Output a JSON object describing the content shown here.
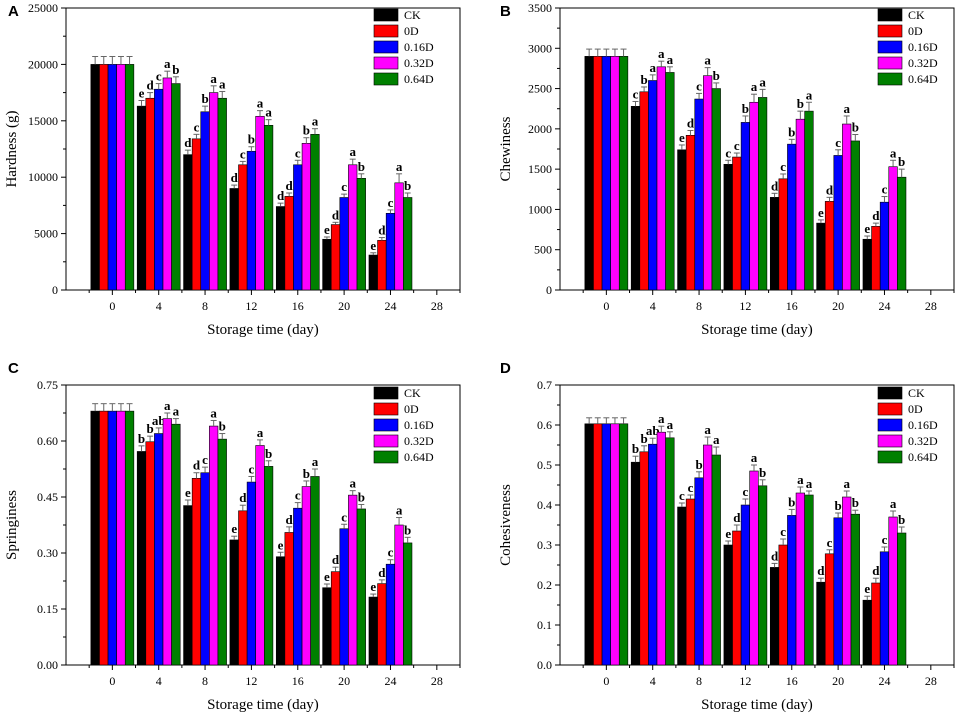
{
  "chart_data": [
    {
      "panel": "A",
      "type": "bar",
      "categories": [
        "0",
        "4",
        "8",
        "12",
        "16",
        "20",
        "24"
      ],
      "xticks": [
        "0",
        "4",
        "8",
        "12",
        "16",
        "20",
        "24",
        "28"
      ],
      "xlabel": "Storage time (day)",
      "ylabel": "Hardness (g)",
      "ylim": [
        0,
        25000
      ],
      "yticks": [
        "0",
        "5000",
        "10000",
        "15000",
        "20000",
        "25000"
      ],
      "legend_position": "top-right",
      "series": [
        {
          "name": "CK",
          "color": "#000000",
          "values": [
            20000,
            16300,
            12000,
            9000,
            7400,
            4500,
            3100
          ],
          "errors": [
            700,
            500,
            400,
            300,
            300,
            200,
            200
          ],
          "labels": [
            "",
            "e",
            "d",
            "d",
            "d",
            "e",
            "e"
          ]
        },
        {
          "name": "0D",
          "color": "#ff0000",
          "values": [
            20000,
            17000,
            13400,
            11100,
            8300,
            5800,
            4400
          ],
          "errors": [
            700,
            500,
            400,
            300,
            300,
            200,
            250
          ],
          "labels": [
            "",
            "d",
            "c",
            "c",
            "d",
            "d",
            "d"
          ]
        },
        {
          "name": "0.16D",
          "color": "#0000ff",
          "values": [
            20000,
            17800,
            15800,
            12300,
            11100,
            8200,
            6800
          ],
          "errors": [
            700,
            500,
            500,
            400,
            400,
            300,
            300
          ],
          "labels": [
            "",
            "c",
            "b",
            "b",
            "c",
            "c",
            "c"
          ]
        },
        {
          "name": "0.32D",
          "color": "#ff00ff",
          "values": [
            20000,
            18800,
            17500,
            15400,
            13000,
            11100,
            9500
          ],
          "errors": [
            700,
            600,
            600,
            500,
            500,
            500,
            800
          ],
          "labels": [
            "",
            "a",
            "a",
            "a",
            "b",
            "a",
            "a"
          ]
        },
        {
          "name": "0.64D",
          "color": "#008000",
          "values": [
            20000,
            18300,
            17000,
            14600,
            13800,
            9900,
            8200
          ],
          "errors": [
            700,
            600,
            600,
            500,
            500,
            400,
            400
          ],
          "labels": [
            "",
            "b",
            "a",
            "a",
            "a",
            "b",
            "b"
          ]
        }
      ]
    },
    {
      "panel": "B",
      "type": "bar",
      "categories": [
        "0",
        "4",
        "8",
        "12",
        "16",
        "20",
        "24"
      ],
      "xticks": [
        "0",
        "4",
        "8",
        "12",
        "16",
        "20",
        "24",
        "28"
      ],
      "xlabel": "Storage time (day)",
      "ylabel": "Chewiness",
      "ylim": [
        0,
        3500
      ],
      "yticks": [
        "0",
        "500",
        "1000",
        "1500",
        "2000",
        "2500",
        "3000",
        "3500"
      ],
      "legend_position": "top-right",
      "series": [
        {
          "name": "CK",
          "color": "#000000",
          "values": [
            2900,
            2280,
            1740,
            1560,
            1150,
            830,
            630
          ],
          "errors": [
            90,
            60,
            60,
            50,
            50,
            40,
            40
          ],
          "labels": [
            "",
            "c",
            "e",
            "c",
            "d",
            "e",
            "e"
          ]
        },
        {
          "name": "0D",
          "color": "#ff0000",
          "values": [
            2900,
            2460,
            1920,
            1650,
            1380,
            1100,
            790
          ],
          "errors": [
            90,
            60,
            60,
            50,
            60,
            50,
            40
          ],
          "labels": [
            "",
            "b",
            "d",
            "c",
            "c",
            "d",
            "d"
          ]
        },
        {
          "name": "0.16D",
          "color": "#0000ff",
          "values": [
            2900,
            2600,
            2370,
            2080,
            1810,
            1670,
            1090
          ],
          "errors": [
            90,
            70,
            70,
            80,
            60,
            70,
            70
          ],
          "labels": [
            "",
            "a",
            "c",
            "b",
            "b",
            "c",
            "c"
          ]
        },
        {
          "name": "0.32D",
          "color": "#ff00ff",
          "values": [
            2900,
            2770,
            2660,
            2330,
            2120,
            2060,
            1530
          ],
          "errors": [
            90,
            70,
            100,
            100,
            100,
            100,
            80
          ],
          "labels": [
            "",
            "a",
            "a",
            "a",
            "b",
            "a",
            "a"
          ]
        },
        {
          "name": "0.64D",
          "color": "#008000",
          "values": [
            2900,
            2700,
            2500,
            2390,
            2220,
            1850,
            1400
          ],
          "errors": [
            90,
            70,
            70,
            100,
            110,
            80,
            100
          ],
          "labels": [
            "",
            "a",
            "b",
            "a",
            "a",
            "b",
            "b"
          ]
        }
      ]
    },
    {
      "panel": "C",
      "type": "bar",
      "categories": [
        "0",
        "4",
        "8",
        "12",
        "16",
        "20",
        "24"
      ],
      "xticks": [
        "0",
        "4",
        "8",
        "12",
        "16",
        "20",
        "24",
        "28"
      ],
      "xlabel": "Storage time (day)",
      "ylabel": "Springiness",
      "ylim": [
        0,
        0.75
      ],
      "yticks": [
        "0.00",
        "0.15",
        "0.30",
        "0.45",
        "0.60",
        "0.75"
      ],
      "legend_position": "top-right",
      "series": [
        {
          "name": "CK",
          "color": "#000000",
          "values": [
            0.68,
            0.572,
            0.427,
            0.335,
            0.29,
            0.207,
            0.182
          ],
          "errors": [
            0.02,
            0.015,
            0.015,
            0.01,
            0.012,
            0.01,
            0.008
          ],
          "labels": [
            "",
            "b",
            "e",
            "e",
            "e",
            "e",
            "e"
          ]
        },
        {
          "name": "0D",
          "color": "#ff0000",
          "values": [
            0.68,
            0.598,
            0.5,
            0.413,
            0.355,
            0.25,
            0.218
          ],
          "errors": [
            0.02,
            0.015,
            0.015,
            0.015,
            0.015,
            0.012,
            0.01
          ],
          "labels": [
            "",
            "b",
            "d",
            "d",
            "d",
            "d",
            "d"
          ]
        },
        {
          "name": "0.16D",
          "color": "#0000ff",
          "values": [
            0.68,
            0.62,
            0.515,
            0.49,
            0.42,
            0.365,
            0.27
          ],
          "errors": [
            0.02,
            0.015,
            0.015,
            0.015,
            0.015,
            0.012,
            0.012
          ],
          "labels": [
            "",
            "ab",
            "c",
            "c",
            "c",
            "c",
            "c"
          ]
        },
        {
          "name": "0.32D",
          "color": "#ff00ff",
          "values": [
            0.68,
            0.66,
            0.64,
            0.588,
            0.478,
            0.455,
            0.375
          ],
          "errors": [
            0.02,
            0.015,
            0.015,
            0.015,
            0.015,
            0.012,
            0.02
          ],
          "labels": [
            "",
            "a",
            "a",
            "a",
            "b",
            "a",
            "a"
          ]
        },
        {
          "name": "0.64D",
          "color": "#008000",
          "values": [
            0.68,
            0.645,
            0.605,
            0.532,
            0.505,
            0.418,
            0.327
          ],
          "errors": [
            0.02,
            0.015,
            0.015,
            0.015,
            0.02,
            0.012,
            0.015
          ],
          "labels": [
            "",
            "a",
            "b",
            "b",
            "a",
            "b",
            "b"
          ]
        }
      ]
    },
    {
      "panel": "D",
      "type": "bar",
      "categories": [
        "0",
        "4",
        "8",
        "12",
        "16",
        "20",
        "24"
      ],
      "xticks": [
        "0",
        "4",
        "8",
        "12",
        "16",
        "20",
        "24",
        "28"
      ],
      "xlabel": "Storage time (day)",
      "ylabel": "Cohesiveness",
      "ylim": [
        0,
        0.7
      ],
      "yticks": [
        "0.0",
        "0.1",
        "0.2",
        "0.3",
        "0.4",
        "0.5",
        "0.6",
        "0.7"
      ],
      "legend_position": "top-right",
      "series": [
        {
          "name": "CK",
          "color": "#000000",
          "values": [
            0.603,
            0.507,
            0.395,
            0.3,
            0.244,
            0.207,
            0.162
          ],
          "errors": [
            0.015,
            0.015,
            0.01,
            0.01,
            0.01,
            0.01,
            0.01
          ],
          "labels": [
            "",
            "b",
            "c",
            "e",
            "d",
            "d",
            "e"
          ]
        },
        {
          "name": "0D",
          "color": "#ff0000",
          "values": [
            0.603,
            0.533,
            0.415,
            0.335,
            0.3,
            0.278,
            0.205
          ],
          "errors": [
            0.015,
            0.015,
            0.01,
            0.015,
            0.015,
            0.01,
            0.012
          ],
          "labels": [
            "",
            "b",
            "c",
            "d",
            "c",
            "c",
            "d"
          ]
        },
        {
          "name": "0.16D",
          "color": "#0000ff",
          "values": [
            0.603,
            0.552,
            0.468,
            0.4,
            0.374,
            0.368,
            0.283
          ],
          "errors": [
            0.015,
            0.015,
            0.015,
            0.015,
            0.015,
            0.012,
            0.012
          ],
          "labels": [
            "",
            "ab",
            "b",
            "c",
            "b",
            "b",
            "c"
          ]
        },
        {
          "name": "0.32D",
          "color": "#ff00ff",
          "values": [
            0.603,
            0.582,
            0.55,
            0.485,
            0.43,
            0.42,
            0.37
          ],
          "errors": [
            0.015,
            0.015,
            0.02,
            0.015,
            0.015,
            0.015,
            0.015
          ],
          "labels": [
            "",
            "a",
            "a",
            "a",
            "a",
            "a",
            "a"
          ]
        },
        {
          "name": "0.64D",
          "color": "#008000",
          "values": [
            0.603,
            0.568,
            0.525,
            0.448,
            0.425,
            0.377,
            0.33
          ],
          "errors": [
            0.015,
            0.015,
            0.02,
            0.015,
            0.01,
            0.01,
            0.015
          ],
          "labels": [
            "",
            "a",
            "a",
            "b",
            "a",
            "b",
            "b"
          ]
        }
      ]
    }
  ]
}
